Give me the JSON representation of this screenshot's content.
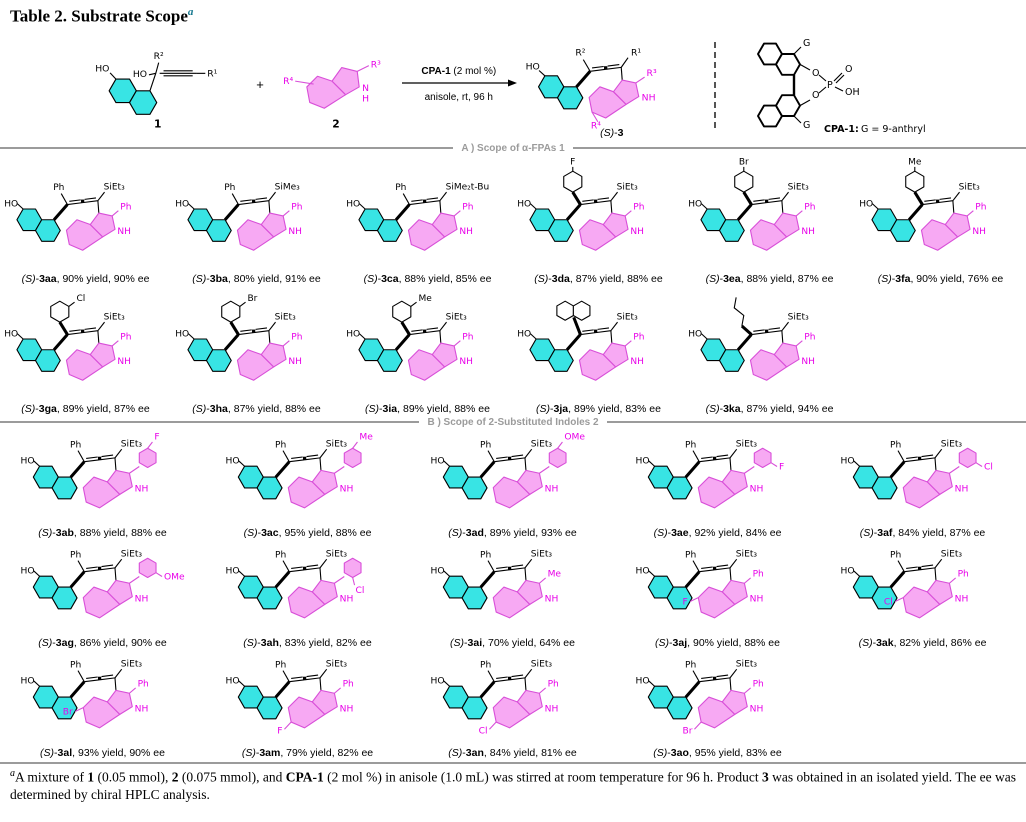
{
  "title": {
    "text": "Table 2. Substrate Scope",
    "sup": "a"
  },
  "structure_common": {
    "hydroxyl": "HO",
    "nh": "NH"
  },
  "scheme": {
    "reactant1": {
      "number": "1",
      "hydroxyl": "HO",
      "carbinol_oh": "HO",
      "r2": "R²",
      "r1": "R¹"
    },
    "plus": "+",
    "reactant2": {
      "number": "2",
      "r4": "R⁴",
      "r3": "R³",
      "n": "N",
      "h": "H"
    },
    "arrow": {
      "above_bold": "CPA-1",
      "above_rest": " (2 mol %)",
      "below": "anisole, rt, 96 h"
    },
    "product": {
      "label_stereo": "(S)",
      "label_sep": "-",
      "label_code": "3",
      "hydroxyl": "HO",
      "r2": "R²",
      "r1": "R¹",
      "r3": "R³",
      "r4": "R⁴",
      "nh": "NH"
    },
    "catalyst": {
      "g_top": "G",
      "g_bottom": "G",
      "o1": "O",
      "o2": "O",
      "p": "P",
      "o_double": "O",
      "oh": "OH",
      "caption_bold": "CPA-1:",
      "caption_rest": " G = 9-anthryl"
    }
  },
  "sections": [
    {
      "header": "A ) Scope of α-FPAs 1",
      "rows": [
        [
          {
            "id": "(S)-3aa",
            "stereo": "(S)",
            "code": "3aa",
            "yield": "90% yield",
            "ee": "90% ee",
            "silyl": "SiEt₃",
            "allene_sub": {
              "label": "Ph",
              "k": "text",
              "t": "Ph"
            },
            "indole_c2": {
              "label": "Ph",
              "k": "text",
              "t": "Ph"
            },
            "indole_ring_sub": null
          },
          {
            "id": "(S)-3ba",
            "stereo": "(S)",
            "code": "3ba",
            "yield": "80% yield",
            "ee": "91% ee",
            "silyl": "SiMe₃",
            "allene_sub": {
              "label": "Ph",
              "k": "text",
              "t": "Ph"
            },
            "indole_c2": {
              "label": "Ph",
              "k": "text",
              "t": "Ph"
            },
            "indole_ring_sub": null
          },
          {
            "id": "(S)-3ca",
            "stereo": "(S)",
            "code": "3ca",
            "yield": "88% yield",
            "ee": "85% ee",
            "silyl": "SiMe₂t-Bu",
            "allene_sub": {
              "label": "Ph",
              "k": "text",
              "t": "Ph"
            },
            "indole_c2": {
              "label": "Ph",
              "k": "text",
              "t": "Ph"
            },
            "indole_ring_sub": null
          },
          {
            "id": "(S)-3da",
            "stereo": "(S)",
            "code": "3da",
            "yield": "87% yield",
            "ee": "88% ee",
            "silyl": "SiEt₃",
            "allene_sub": {
              "label": "4-F-C₆H₄",
              "k": "aryl",
              "sub": "F",
              "pos": "para"
            },
            "indole_c2": {
              "label": "Ph",
              "k": "text",
              "t": "Ph"
            },
            "indole_ring_sub": null
          },
          {
            "id": "(S)-3ea",
            "stereo": "(S)",
            "code": "3ea",
            "yield": "88% yield",
            "ee": "87% ee",
            "silyl": "SiEt₃",
            "allene_sub": {
              "label": "4-Br-C₆H₄",
              "k": "aryl",
              "sub": "Br",
              "pos": "para"
            },
            "indole_c2": {
              "label": "Ph",
              "k": "text",
              "t": "Ph"
            },
            "indole_ring_sub": null
          },
          {
            "id": "(S)-3fa",
            "stereo": "(S)",
            "code": "3fa",
            "yield": "90% yield",
            "ee": "76% ee",
            "silyl": "SiEt₃",
            "allene_sub": {
              "label": "4-Me-C₆H₄",
              "k": "aryl",
              "sub": "Me",
              "pos": "para"
            },
            "indole_c2": {
              "label": "Ph",
              "k": "text",
              "t": "Ph"
            },
            "indole_ring_sub": null
          }
        ],
        [
          {
            "id": "(S)-3ga",
            "stereo": "(S)",
            "code": "3ga",
            "yield": "89% yield",
            "ee": "87% ee",
            "silyl": "SiEt₃",
            "allene_sub": {
              "label": "3-Cl-C₆H₄",
              "k": "aryl",
              "sub": "Cl",
              "pos": "meta"
            },
            "indole_c2": {
              "label": "Ph",
              "k": "text",
              "t": "Ph"
            },
            "indole_ring_sub": null
          },
          {
            "id": "(S)-3ha",
            "stereo": "(S)",
            "code": "3ha",
            "yield": "87% yield",
            "ee": "88% ee",
            "silyl": "SiEt₃",
            "allene_sub": {
              "label": "3-Br-C₆H₄",
              "k": "aryl",
              "sub": "Br",
              "pos": "meta"
            },
            "indole_c2": {
              "label": "Ph",
              "k": "text",
              "t": "Ph"
            },
            "indole_ring_sub": null
          },
          {
            "id": "(S)-3ia",
            "stereo": "(S)",
            "code": "3ia",
            "yield": "89% yield",
            "ee": "88% ee",
            "silyl": "SiEt₃",
            "allene_sub": {
              "label": "3-Me-C₆H₄",
              "k": "aryl",
              "sub": "Me",
              "pos": "meta"
            },
            "indole_c2": {
              "label": "Ph",
              "k": "text",
              "t": "Ph"
            },
            "indole_ring_sub": null
          },
          {
            "id": "(S)-3ja",
            "stereo": "(S)",
            "code": "3ja",
            "yield": "89% yield",
            "ee": "83% ee",
            "silyl": "SiEt₃",
            "allene_sub": {
              "label": "2-naphthyl",
              "k": "naphthyl"
            },
            "indole_c2": {
              "label": "Ph",
              "k": "text",
              "t": "Ph"
            },
            "indole_ring_sub": null
          },
          {
            "id": "(S)-3ka",
            "stereo": "(S)",
            "code": "3ka",
            "yield": "87% yield",
            "ee": "94% ee",
            "silyl": "SiEt₃",
            "allene_sub": {
              "label": "n-Bu",
              "k": "butyl"
            },
            "indole_c2": {
              "label": "Ph",
              "k": "text",
              "t": "Ph"
            },
            "indole_ring_sub": null
          }
        ]
      ]
    },
    {
      "header": "B ) Scope of 2-Substituted Indoles 2",
      "rows": [
        [
          {
            "id": "(S)-3ab",
            "stereo": "(S)",
            "code": "3ab",
            "yield": "88% yield",
            "ee": "88% ee",
            "silyl": "SiEt₃",
            "allene_sub": {
              "label": "Ph",
              "k": "text",
              "t": "Ph"
            },
            "indole_c2": {
              "label": "4-F-C₆H₄",
              "k": "aryl",
              "sub": "F",
              "pos": "para"
            },
            "indole_ring_sub": null
          },
          {
            "id": "(S)-3ac",
            "stereo": "(S)",
            "code": "3ac",
            "yield": "95% yield",
            "ee": "88% ee",
            "silyl": "SiEt₃",
            "allene_sub": {
              "label": "Ph",
              "k": "text",
              "t": "Ph"
            },
            "indole_c2": {
              "label": "4-Me-C₆H₄",
              "k": "aryl",
              "sub": "Me",
              "pos": "para"
            },
            "indole_ring_sub": null
          },
          {
            "id": "(S)-3ad",
            "stereo": "(S)",
            "code": "3ad",
            "yield": "89% yield",
            "ee": "93% ee",
            "silyl": "SiEt₃",
            "allene_sub": {
              "label": "Ph",
              "k": "text",
              "t": "Ph"
            },
            "indole_c2": {
              "label": "4-OMe-C₆H₄",
              "k": "aryl",
              "sub": "OMe",
              "pos": "para"
            },
            "indole_ring_sub": null
          },
          {
            "id": "(S)-3ae",
            "stereo": "(S)",
            "code": "3ae",
            "yield": "92% yield",
            "ee": "84% ee",
            "silyl": "SiEt₃",
            "allene_sub": {
              "label": "Ph",
              "k": "text",
              "t": "Ph"
            },
            "indole_c2": {
              "label": "3-F-C₆H₄",
              "k": "aryl",
              "sub": "F",
              "pos": "meta"
            },
            "indole_ring_sub": null
          },
          {
            "id": "(S)-3af",
            "stereo": "(S)",
            "code": "3af",
            "yield": "84% yield",
            "ee": "87% ee",
            "silyl": "SiEt₃",
            "allene_sub": {
              "label": "Ph",
              "k": "text",
              "t": "Ph"
            },
            "indole_c2": {
              "label": "3-Cl-C₆H₄",
              "k": "aryl",
              "sub": "Cl",
              "pos": "meta"
            },
            "indole_ring_sub": null
          }
        ],
        [
          {
            "id": "(S)-3ag",
            "stereo": "(S)",
            "code": "3ag",
            "yield": "86% yield",
            "ee": "90% ee",
            "silyl": "SiEt₃",
            "allene_sub": {
              "label": "Ph",
              "k": "text",
              "t": "Ph"
            },
            "indole_c2": {
              "label": "3-OMe-C₆H₄",
              "k": "aryl",
              "sub": "OMe",
              "pos": "meta"
            },
            "indole_ring_sub": null
          },
          {
            "id": "(S)-3ah",
            "stereo": "(S)",
            "code": "3ah",
            "yield": "83% yield",
            "ee": "82% ee",
            "silyl": "SiEt₃",
            "allene_sub": {
              "label": "Ph",
              "k": "text",
              "t": "Ph"
            },
            "indole_c2": {
              "label": "2-Cl-C₆H₄",
              "k": "aryl",
              "sub": "Cl",
              "pos": "ortho"
            },
            "indole_ring_sub": null
          },
          {
            "id": "(S)-3ai",
            "stereo": "(S)",
            "code": "3ai",
            "yield": "70% yield",
            "ee": "64% ee",
            "silyl": "SiEt₃",
            "allene_sub": {
              "label": "Ph",
              "k": "text",
              "t": "Ph"
            },
            "indole_c2": {
              "label": "Me",
              "k": "text",
              "t": "Me"
            },
            "indole_ring_sub": null
          },
          {
            "id": "(S)-3aj",
            "stereo": "(S)",
            "code": "3aj",
            "yield": "90% yield",
            "ee": "88% ee",
            "silyl": "SiEt₃",
            "allene_sub": {
              "label": "Ph",
              "k": "text",
              "t": "Ph"
            },
            "indole_c2": {
              "label": "Ph",
              "k": "text",
              "t": "Ph"
            },
            "indole_ring_sub": {
              "pos": "5",
              "group": "F"
            }
          },
          {
            "id": "(S)-3ak",
            "stereo": "(S)",
            "code": "3ak",
            "yield": "82% yield",
            "ee": "86% ee",
            "silyl": "SiEt₃",
            "allene_sub": {
              "label": "Ph",
              "k": "text",
              "t": "Ph"
            },
            "indole_c2": {
              "label": "Ph",
              "k": "text",
              "t": "Ph"
            },
            "indole_ring_sub": {
              "pos": "5",
              "group": "Cl"
            }
          }
        ],
        [
          {
            "id": "(S)-3al",
            "stereo": "(S)",
            "code": "3al",
            "yield": "93% yield",
            "ee": "90% ee",
            "silyl": "SiEt₃",
            "allene_sub": {
              "label": "Ph",
              "k": "text",
              "t": "Ph"
            },
            "indole_c2": {
              "label": "Ph",
              "k": "text",
              "t": "Ph"
            },
            "indole_ring_sub": {
              "pos": "5",
              "group": "Br"
            }
          },
          {
            "id": "(S)-3am",
            "stereo": "(S)",
            "code": "3am",
            "yield": "79% yield",
            "ee": "82% ee",
            "silyl": "SiEt₃",
            "allene_sub": {
              "label": "Ph",
              "k": "text",
              "t": "Ph"
            },
            "indole_c2": {
              "label": "Ph",
              "k": "text",
              "t": "Ph"
            },
            "indole_ring_sub": {
              "pos": "6",
              "group": "F"
            }
          },
          {
            "id": "(S)-3an",
            "stereo": "(S)",
            "code": "3an",
            "yield": "84% yield",
            "ee": "81% ee",
            "silyl": "SiEt₃",
            "allene_sub": {
              "label": "Ph",
              "k": "text",
              "t": "Ph"
            },
            "indole_c2": {
              "label": "Ph",
              "k": "text",
              "t": "Ph"
            },
            "indole_ring_sub": {
              "pos": "6",
              "group": "Cl"
            }
          },
          {
            "id": "(S)-3ao",
            "stereo": "(S)",
            "code": "3ao",
            "yield": "95% yield",
            "ee": "83% ee",
            "silyl": "SiEt₃",
            "allene_sub": {
              "label": "Ph",
              "k": "text",
              "t": "Ph"
            },
            "indole_c2": {
              "label": "Ph",
              "k": "text",
              "t": "Ph"
            },
            "indole_ring_sub": {
              "pos": "6",
              "group": "Br"
            }
          }
        ]
      ]
    }
  ],
  "footnote": {
    "mark": "a",
    "segments": [
      {
        "text": "A mixture of ",
        "bold": false
      },
      {
        "text": "1",
        "bold": true
      },
      {
        "text": " (0.05 mmol), ",
        "bold": false
      },
      {
        "text": "2",
        "bold": true
      },
      {
        "text": " (0.075 mmol), and ",
        "bold": false
      },
      {
        "text": "CPA-1",
        "bold": true
      },
      {
        "text": " (2 mol %) in anisole (1.0 mL) was stirred at room temperature for 96 h. Product ",
        "bold": false
      },
      {
        "text": "3",
        "bold": true
      },
      {
        "text": " was obtained in an isolated yield. The ee was determined by chiral HPLC analysis.",
        "bold": false
      }
    ]
  },
  "colors": {
    "naphthol_fill": "#38e4e4",
    "indole_fill": "#f7a9f3",
    "indole_stroke": "#d84fd8",
    "magenta_text": "#e800e8",
    "section_gray": "#9b9b9b",
    "title_sup": "#16788f"
  }
}
